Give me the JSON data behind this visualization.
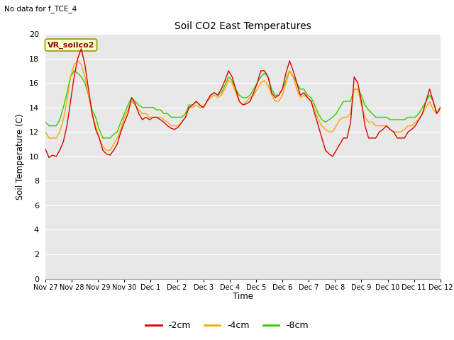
{
  "title": "Soil CO2 East Temperatures",
  "no_data_label": "No data for f_TCE_4",
  "vr_label": "VR_soilco2",
  "xlabel": "Time",
  "ylabel": "Soil Temperature (C)",
  "ylim": [
    0,
    20
  ],
  "yticks": [
    0,
    2,
    4,
    6,
    8,
    10,
    12,
    14,
    16,
    18,
    20
  ],
  "bg_color": "#ffffff",
  "plot_bg": "#e8e8e8",
  "legend": [
    {
      "label": "-2cm",
      "color": "#dd0000"
    },
    {
      "label": "-4cm",
      "color": "#ffa500"
    },
    {
      "label": "-8cm",
      "color": "#33cc00"
    }
  ],
  "x_tick_labels": [
    "Nov 27",
    "Nov 28",
    "Nov 29",
    "Nov 30",
    "Dec 1",
    "Dec 2",
    "Dec 3",
    "Dec 4",
    "Dec 5",
    "Dec 6",
    "Dec 7",
    "Dec 8",
    "Dec 9",
    "Dec 10",
    "Dec 11",
    "Dec 12"
  ],
  "series": {
    "red": [
      10.6,
      9.9,
      10.1,
      10.0,
      10.5,
      11.2,
      12.5,
      14.5,
      16.5,
      18.0,
      18.8,
      17.5,
      15.5,
      13.5,
      12.2,
      11.5,
      10.5,
      10.2,
      10.1,
      10.5,
      11.0,
      12.0,
      12.8,
      13.5,
      14.8,
      14.3,
      13.5,
      13.0,
      13.2,
      13.0,
      13.2,
      13.2,
      13.0,
      12.8,
      12.5,
      12.3,
      12.2,
      12.4,
      12.8,
      13.2,
      14.0,
      14.2,
      14.5,
      14.2,
      14.0,
      14.5,
      15.0,
      15.2,
      15.0,
      15.5,
      16.2,
      17.0,
      16.5,
      15.5,
      14.5,
      14.2,
      14.3,
      14.5,
      15.2,
      16.0,
      17.0,
      17.0,
      16.5,
      15.2,
      14.8,
      15.0,
      15.5,
      16.8,
      17.8,
      17.0,
      16.0,
      15.0,
      15.2,
      14.8,
      14.5,
      13.5,
      12.5,
      11.5,
      10.5,
      10.2,
      10.0,
      10.5,
      11.0,
      11.5,
      11.5,
      12.8,
      16.5,
      16.0,
      14.5,
      12.5,
      11.5,
      11.5,
      11.5,
      12.0,
      12.2,
      12.5,
      12.2,
      12.0,
      11.5,
      11.5,
      11.5,
      12.0,
      12.2,
      12.5,
      13.0,
      13.5,
      14.5,
      15.5,
      14.5,
      13.5,
      14.0
    ],
    "orange": [
      12.0,
      11.5,
      11.5,
      11.5,
      12.0,
      13.0,
      14.5,
      16.5,
      17.5,
      17.8,
      17.5,
      16.5,
      15.0,
      13.5,
      12.5,
      11.5,
      10.8,
      10.5,
      10.5,
      11.0,
      11.5,
      12.2,
      13.2,
      13.8,
      14.5,
      14.2,
      13.8,
      13.5,
      13.5,
      13.2,
      13.2,
      13.2,
      13.2,
      13.0,
      12.8,
      12.5,
      12.5,
      12.5,
      12.8,
      13.2,
      14.0,
      14.0,
      14.2,
      14.0,
      14.0,
      14.5,
      14.8,
      15.0,
      14.8,
      15.0,
      15.5,
      16.2,
      16.0,
      15.2,
      14.5,
      14.2,
      14.5,
      14.8,
      15.0,
      15.5,
      16.0,
      16.2,
      15.8,
      15.0,
      14.5,
      14.5,
      15.0,
      16.0,
      17.0,
      16.5,
      15.5,
      14.8,
      15.0,
      14.8,
      14.5,
      13.8,
      13.0,
      12.5,
      12.2,
      12.0,
      12.0,
      12.5,
      13.0,
      13.2,
      13.2,
      13.5,
      15.5,
      15.5,
      14.2,
      13.2,
      12.8,
      12.8,
      12.5,
      12.5,
      12.5,
      12.5,
      12.2,
      12.0,
      12.0,
      12.0,
      12.2,
      12.5,
      12.5,
      12.8,
      13.0,
      13.5,
      14.0,
      14.5,
      13.8,
      13.5,
      13.8
    ],
    "green": [
      12.8,
      12.5,
      12.5,
      12.5,
      13.0,
      14.0,
      15.2,
      16.5,
      17.0,
      16.8,
      16.5,
      16.0,
      15.0,
      13.8,
      13.2,
      12.2,
      11.5,
      11.5,
      11.5,
      11.8,
      12.0,
      12.8,
      13.5,
      14.2,
      14.8,
      14.5,
      14.2,
      14.0,
      14.0,
      14.0,
      14.0,
      13.8,
      13.8,
      13.5,
      13.5,
      13.2,
      13.2,
      13.2,
      13.2,
      13.5,
      14.2,
      14.2,
      14.5,
      14.2,
      14.0,
      14.5,
      15.0,
      15.2,
      15.0,
      15.2,
      15.8,
      16.5,
      16.2,
      15.5,
      15.0,
      14.8,
      14.8,
      15.0,
      15.5,
      16.0,
      16.5,
      16.8,
      16.5,
      15.5,
      15.0,
      15.0,
      15.5,
      16.2,
      17.0,
      16.5,
      16.0,
      15.5,
      15.5,
      15.0,
      14.8,
      14.2,
      13.5,
      13.0,
      12.8,
      13.0,
      13.2,
      13.5,
      14.0,
      14.5,
      14.5,
      14.5,
      15.5,
      15.5,
      15.0,
      14.2,
      13.8,
      13.5,
      13.2,
      13.2,
      13.2,
      13.2,
      13.0,
      13.0,
      13.0,
      13.0,
      13.0,
      13.2,
      13.2,
      13.2,
      13.5,
      14.0,
      14.5,
      15.0,
      14.5,
      13.5,
      14.0
    ]
  }
}
